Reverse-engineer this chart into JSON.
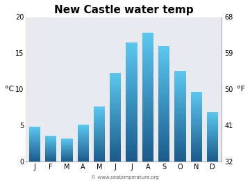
{
  "title": "New Castle water temp",
  "months": [
    "J",
    "F",
    "M",
    "A",
    "M",
    "J",
    "J",
    "A",
    "S",
    "O",
    "N",
    "D"
  ],
  "values_c": [
    4.9,
    3.6,
    3.2,
    5.1,
    7.6,
    12.3,
    16.5,
    17.8,
    16.0,
    12.5,
    9.7,
    6.9
  ],
  "ylim_c": [
    0,
    20
  ],
  "yticks_c": [
    0,
    5,
    10,
    15,
    20
  ],
  "yticks_f": [
    32,
    41,
    50,
    59,
    68
  ],
  "ylabel_left": "°C",
  "ylabel_right": "°F",
  "watermark": "© www.seatemperature.org",
  "fig_bg_color": "#ffffff",
  "plot_bg_color": "#e8eaf0",
  "bar_color_top": "#5bc8f0",
  "bar_color_bottom": "#1a5a8a",
  "title_fontsize": 11,
  "tick_fontsize": 7,
  "label_fontsize": 8,
  "watermark_fontsize": 5
}
